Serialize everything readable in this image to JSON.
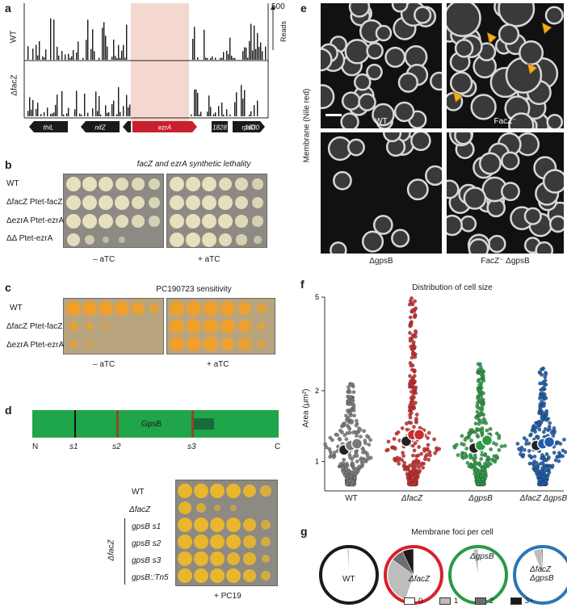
{
  "panel_a": {
    "label": "a",
    "row_labels": [
      "WT",
      "ΔfacZ"
    ],
    "axis_max": "500",
    "axis_label": "Reads",
    "genes": [
      "thiL",
      "nifZ",
      "ezrA",
      "1828",
      "rpsD",
      "1830"
    ],
    "colors": {
      "highlight": "#f4d7cf",
      "ezrA": "#c8202e"
    }
  },
  "panel_b": {
    "label": "b",
    "title": "facZ and ezrA synthetic lethality",
    "rows": [
      "WT",
      "ΔfacZ Ptet-facZ",
      "ΔezrA Ptet-ezrA",
      "ΔΔ Ptet-ezrA"
    ],
    "conditions": [
      "– aTC",
      "+ aTC"
    ]
  },
  "panel_c": {
    "label": "c",
    "title": "PC190723 sensitivity",
    "rows": [
      "WT",
      "ΔfacZ Ptet-facZ",
      "ΔezrA Ptet-ezrA"
    ],
    "conditions": [
      "– aTC",
      "+ aTC"
    ]
  },
  "panel_d": {
    "label": "d",
    "protein": "GpsB",
    "n_term": "N",
    "c_term": "C",
    "sites": [
      "s1",
      "s2",
      "s3"
    ],
    "rows": [
      "WT",
      "ΔfacZ",
      "gpsB s1",
      "gpsB s2",
      "gpsB s3",
      "gpsB::Tn5"
    ],
    "group_label": "ΔfacZ",
    "condition": "+ PC19",
    "colors": {
      "domain": "#1fa54a",
      "dark": "#1a6b3a",
      "site": "#8b4a2a"
    }
  },
  "panel_e": {
    "label": "e",
    "y_label": "Membrane (Nile red)",
    "images": [
      "WT",
      "FacZ⁻",
      "ΔgpsB",
      "FacZ⁻ ΔgpsB"
    ],
    "arrow_color": "#f3a91e"
  },
  "panel_f": {
    "label": "f",
    "chart_data": {
      "type": "scatter",
      "title": "Distribution of cell size",
      "ylabel": "Area (μm²)",
      "yscale": "log",
      "ylim": [
        0.75,
        5
      ],
      "yticks": [
        "1",
        "2",
        "5"
      ],
      "categories": [
        "WT",
        "ΔfacZ",
        "ΔgpsB",
        "ΔfacZ ΔgpsB"
      ],
      "colors": [
        "#7a7a7a",
        "#c8302e",
        "#2e9a48",
        "#1f5ea8"
      ],
      "replicate_medians": [
        [
          1.12,
          1.17,
          1.19
        ],
        [
          1.22,
          1.3,
          1.3
        ],
        [
          1.14,
          1.17,
          1.23
        ],
        [
          1.17,
          1.19,
          1.21
        ]
      ],
      "max_values": [
        2.2,
        5.0,
        2.6,
        2.5
      ]
    }
  },
  "panel_g": {
    "label": "g",
    "chart_data": {
      "type": "pie",
      "title": "Membrane foci per cell",
      "legend": [
        "0",
        "1",
        "2",
        "3+"
      ],
      "legend_colors": [
        "#ffffff",
        "#bdbdbd",
        "#6e6e6e",
        "#1a1a1a"
      ],
      "pies": [
        {
          "label": "WT",
          "ring": "#1a1a1a",
          "fractions": [
            0.99,
            0.01,
            0,
            0
          ]
        },
        {
          "label": "ΔfacZ",
          "ring": "#d8202a",
          "fractions": [
            0.55,
            0.3,
            0.08,
            0.07
          ]
        },
        {
          "label": "ΔgpsB",
          "ring": "#2a9a44",
          "fractions": [
            0.97,
            0.03,
            0,
            0
          ]
        },
        {
          "label": "ΔfacZ ΔgpsB",
          "ring": "#2a76b8",
          "fractions": [
            0.94,
            0.05,
            0.01,
            0
          ]
        }
      ]
    }
  }
}
